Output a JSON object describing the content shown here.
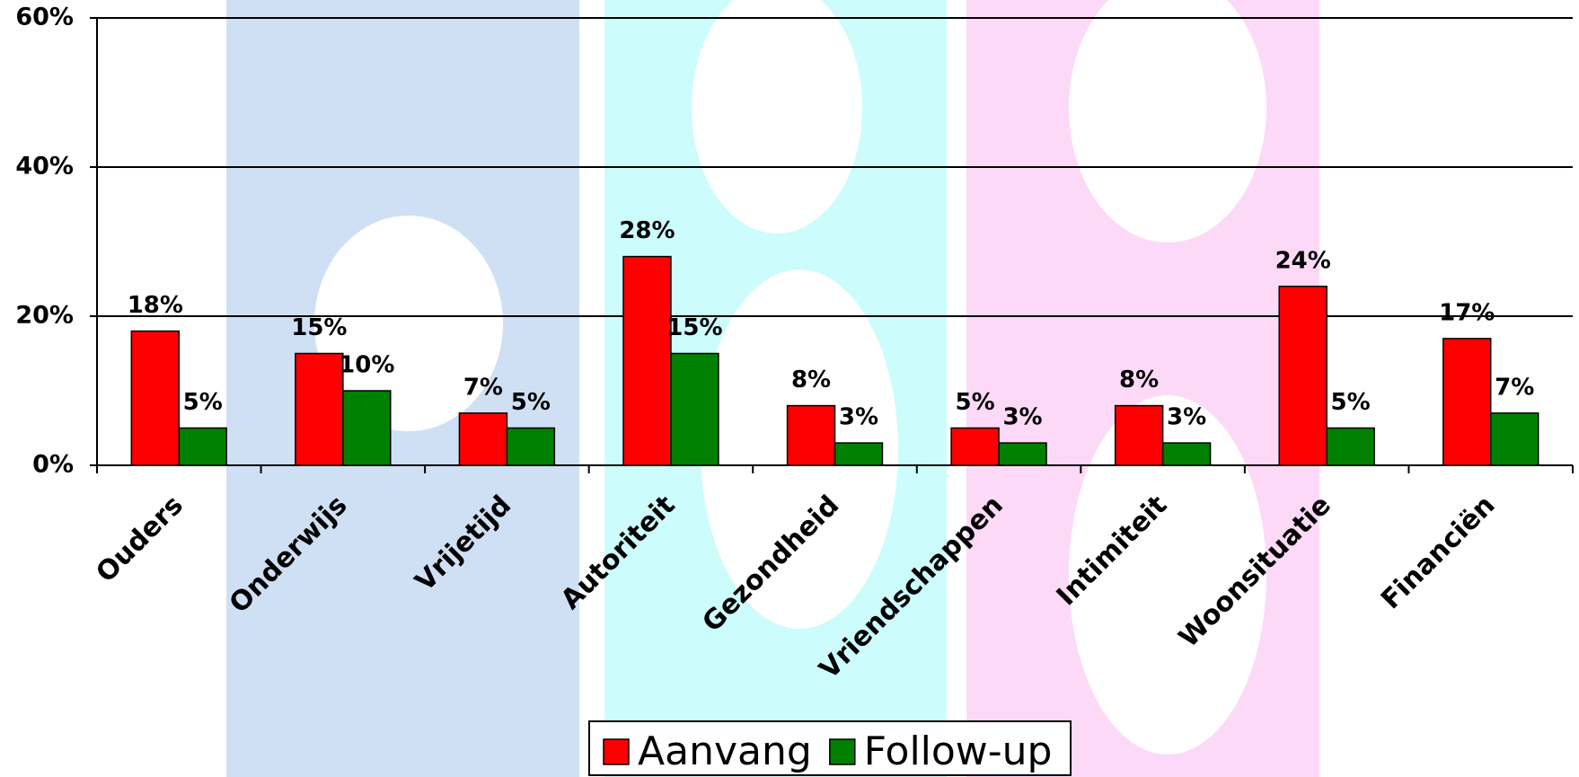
{
  "chart_data": {
    "type": "bar",
    "categories": [
      "Ouders",
      "Onderwijs",
      "Vrijetijd",
      "Autoriteit",
      "Gezondheid",
      "Vriendschappen",
      "Intimiteit",
      "Woonsituatie",
      "Financiën"
    ],
    "series": [
      {
        "name": "Aanvang",
        "color": "#ff0000",
        "values": [
          18,
          15,
          7,
          28,
          8,
          5,
          8,
          24,
          17
        ],
        "value_labels": [
          "18%",
          "15%",
          "7%",
          "28%",
          "8%",
          "5%",
          "8%",
          "24%",
          "17%"
        ]
      },
      {
        "name": "Follow-up",
        "color": "#008000",
        "values": [
          5,
          10,
          5,
          15,
          3,
          3,
          3,
          5,
          7
        ],
        "value_labels": [
          "5%",
          "10%",
          "5%",
          "15%",
          "3%",
          "3%",
          "3%",
          "5%",
          "7%"
        ]
      }
    ],
    "ylim": [
      0,
      60
    ],
    "yticks": [
      {
        "value": 0,
        "label": "0%"
      },
      {
        "value": 20,
        "label": "20%"
      },
      {
        "value": 40,
        "label": "40%"
      },
      {
        "value": 60,
        "label": "60%"
      }
    ],
    "grid": true,
    "legend": "bottom"
  }
}
